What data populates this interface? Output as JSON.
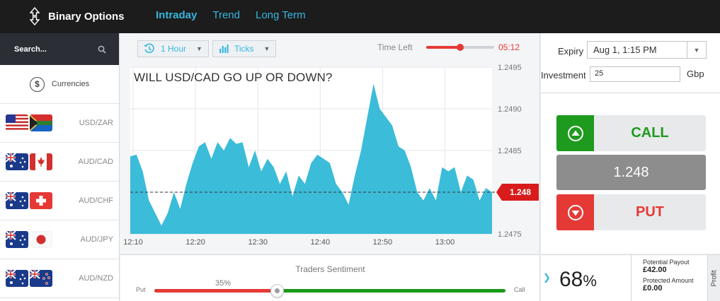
{
  "header": {
    "brand": "Binary Options",
    "nav": [
      "Intraday",
      "Trend",
      "Long Term"
    ],
    "active_nav": "Intraday"
  },
  "sidebar": {
    "search_placeholder": "Search...",
    "category": "Currencies",
    "pairs": [
      {
        "label": "USD/ZAR",
        "flags": [
          "us",
          "za"
        ]
      },
      {
        "label": "AUD/CAD",
        "flags": [
          "au",
          "ca"
        ]
      },
      {
        "label": "AUD/CHF",
        "flags": [
          "au",
          "ch"
        ]
      },
      {
        "label": "AUD/JPY",
        "flags": [
          "au",
          "jp"
        ]
      },
      {
        "label": "AUD/NZD",
        "flags": [
          "au",
          "nz"
        ]
      }
    ]
  },
  "toolbar": {
    "interval": "1 Hour",
    "chart_mode": "Ticks",
    "time_left_label": "Time Left",
    "time_left_value": "05:12",
    "time_left_fraction": 0.5
  },
  "chart": {
    "question": "WILL USD/CAD GO UP OR DOWN?",
    "current_price_tag": "1.248"
  },
  "chart_data": {
    "type": "area",
    "x_ticks": [
      "12:10",
      "12:20",
      "12:30",
      "12:40",
      "12:50",
      "13:00"
    ],
    "y_ticks": [
      "1.2495",
      "1.2490",
      "1.2485",
      "1.2480",
      "1.2475"
    ],
    "ylim": [
      1.2475,
      1.2495
    ],
    "grid": true,
    "current_value": 1.248,
    "color": "#3bbcd9",
    "x_minutes": [
      0,
      1,
      2,
      3,
      4,
      5,
      6,
      7,
      8,
      9,
      10,
      11,
      12,
      13,
      14,
      15,
      16,
      17,
      18,
      19,
      20,
      21,
      22,
      23,
      24,
      25,
      26,
      27,
      28,
      29,
      30,
      31,
      32,
      33,
      34,
      35,
      36,
      37,
      38,
      39,
      40,
      41,
      42,
      43,
      44,
      45,
      46,
      47,
      48,
      49,
      50,
      51,
      52,
      53,
      54,
      55,
      56,
      57,
      58
    ],
    "values": [
      1.24843,
      1.24845,
      1.24825,
      1.2479,
      1.24775,
      1.2476,
      1.24775,
      1.248,
      1.2478,
      1.2481,
      1.24835,
      1.24855,
      1.2486,
      1.2484,
      1.2486,
      1.2485,
      1.24865,
      1.24858,
      1.2486,
      1.2483,
      1.2485,
      1.24825,
      1.2484,
      1.2483,
      1.2481,
      1.24825,
      1.24795,
      1.2482,
      1.2481,
      1.24835,
      1.24845,
      1.2484,
      1.24835,
      1.2481,
      1.248,
      1.24785,
      1.2482,
      1.2485,
      1.2489,
      1.2493,
      1.249,
      1.2489,
      1.2488,
      1.24855,
      1.2485,
      1.2483,
      1.248,
      1.2479,
      1.24805,
      1.2479,
      1.2483,
      1.24825,
      1.2483,
      1.248,
      1.2482,
      1.24815,
      1.2479,
      1.24805,
      1.248
    ]
  },
  "sentiment": {
    "title": "Traders Sentiment",
    "put_label": "Put",
    "call_label": "Call",
    "put_percent_label": "35%",
    "put_fraction": 0.35
  },
  "trade": {
    "expiry_label": "Expiry",
    "expiry_value": "Aug 1, 1:15 PM",
    "investment_label": "Investment",
    "investment_value": "25",
    "currency": "Gbp",
    "call_label": "CALL",
    "price": "1.248",
    "put_label": "PUT"
  },
  "payout": {
    "percent": "68",
    "percent_sign": "%",
    "potential_label": "Potential Payout",
    "potential_value": "£42.00",
    "protected_label": "Protected Amount",
    "protected_value": "£0.00",
    "tab_label": "Profit"
  },
  "colors": {
    "accent": "#36b6de",
    "call": "#1e9a1e",
    "put": "#e53935",
    "chart_fill": "#3bbcd9"
  }
}
